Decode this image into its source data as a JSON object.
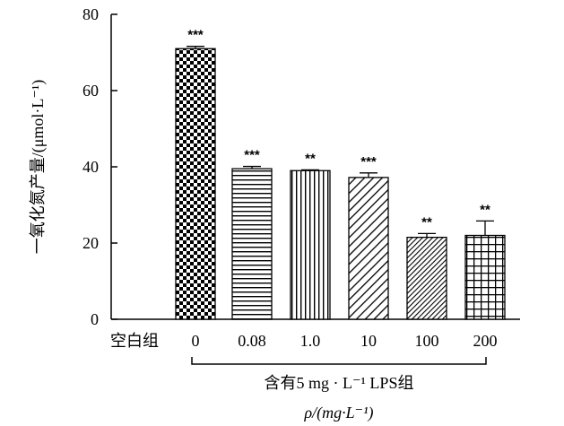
{
  "chart_data": {
    "type": "bar",
    "categories": [
      "空白组",
      "0",
      "0.08",
      "1.0",
      "10",
      "100",
      "200"
    ],
    "values": [
      0,
      71,
      39.5,
      39,
      37.2,
      21.5,
      22
    ],
    "errors": [
      0,
      0.6,
      0.6,
      0.2,
      1.2,
      1.0,
      3.8
    ],
    "significance": [
      "",
      "***",
      "***",
      "**",
      "***",
      "**",
      "**"
    ],
    "patterns": [
      "none",
      "checker",
      "hlines",
      "vlines",
      "diag-wide",
      "diag-dense",
      "grid"
    ],
    "ylabel": "一氧化氮产量/(μmol·L⁻¹)",
    "xlabel": "ρ/(mg·L⁻¹)",
    "group_label": "含有5 mg · L⁻¹ LPS组",
    "ylim": [
      0,
      80
    ],
    "yticks": [
      "0",
      "20",
      "40",
      "60",
      "80"
    ],
    "grid": false,
    "legend": "none"
  }
}
